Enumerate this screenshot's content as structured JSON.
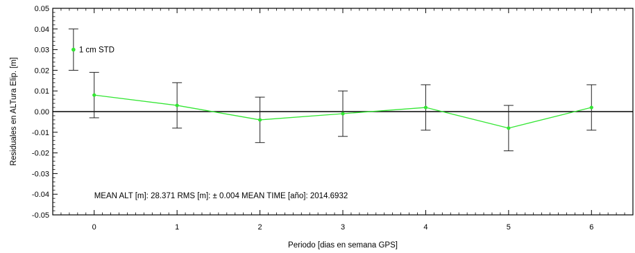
{
  "chart_data": {
    "type": "line",
    "xlabel": "Periodo [dias en semana GPS]",
    "ylabel": "Residuales en ALTura Elip. [m]",
    "xlim": [
      -0.5,
      6.5
    ],
    "ylim": [
      -0.05,
      0.05
    ],
    "x_ticks": [
      "0",
      "1",
      "2",
      "3",
      "4",
      "5",
      "6"
    ],
    "y_ticks": [
      "0.05",
      "0.04",
      "0.03",
      "0.02",
      "0.01",
      "0.00",
      "-0.01",
      "-0.02",
      "-0.03",
      "-0.04",
      "-0.05"
    ],
    "grid": false,
    "zero_line": true,
    "series": [
      {
        "color": "#33e633",
        "x": [
          0,
          1,
          2,
          3,
          4,
          5,
          6
        ],
        "y": [
          0.008,
          0.003,
          -0.004,
          -0.001,
          0.002,
          -0.008,
          0.002
        ],
        "error": [
          0.011,
          0.011,
          0.011,
          0.011,
          0.011,
          0.011,
          0.011
        ]
      }
    ],
    "legend": {
      "label": "1 cm STD",
      "position": "top-left",
      "y": 0.03,
      "error": 0.01
    },
    "annotation": "MEAN ALT [m]: 28.371   RMS [m]: ± 0.004   MEAN TIME [año]: 2014.6932"
  }
}
